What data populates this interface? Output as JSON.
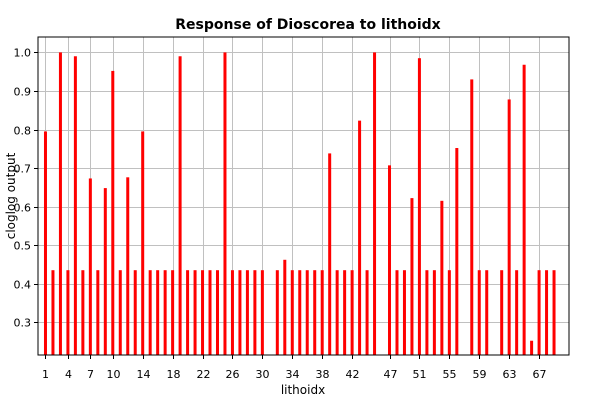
{
  "chart_data": {
    "type": "bar",
    "title": "Response of Dioscorea to lithoidx",
    "xlabel": "lithoidx",
    "ylabel": "cloglog output",
    "x": [
      1,
      2,
      3,
      4,
      5,
      6,
      7,
      8,
      9,
      10,
      11,
      12,
      13,
      14,
      15,
      16,
      17,
      18,
      19,
      20,
      21,
      22,
      23,
      24,
      25,
      26,
      27,
      28,
      29,
      30,
      31,
      32,
      33,
      34,
      35,
      36,
      37,
      38,
      39,
      40,
      41,
      42,
      43,
      44,
      45,
      46,
      47,
      48,
      49,
      50,
      51,
      52,
      53,
      54,
      55,
      56,
      57,
      58,
      59,
      60,
      61,
      62,
      63,
      64,
      65,
      66,
      67,
      68,
      69
    ],
    "values": [
      0.795,
      0.435,
      1.0,
      0.435,
      0.99,
      0.435,
      0.673,
      0.435,
      0.648,
      0.952,
      0.435,
      0.676,
      0.435,
      0.795,
      0.435,
      0.435,
      0.435,
      0.435,
      0.99,
      0.435,
      0.435,
      0.435,
      0.435,
      0.435,
      1.0,
      0.435,
      0.435,
      0.435,
      0.435,
      0.435,
      null,
      0.435,
      0.462,
      0.435,
      0.435,
      0.435,
      0.435,
      0.435,
      0.738,
      0.435,
      0.435,
      0.435,
      0.823,
      0.435,
      1.0,
      null,
      0.707,
      0.435,
      0.435,
      0.622,
      0.985,
      0.435,
      0.435,
      0.615,
      0.435,
      0.752,
      null,
      0.93,
      0.435,
      0.435,
      null,
      0.435,
      0.878,
      0.435,
      0.968,
      0.252,
      0.435,
      0.435,
      0.435
    ],
    "xticks": [
      1,
      4,
      7,
      10,
      14,
      18,
      22,
      26,
      30,
      34,
      38,
      42,
      47,
      51,
      55,
      59,
      63,
      67
    ],
    "yticks": [
      0.3,
      0.4,
      0.5,
      0.6,
      0.7,
      0.8,
      0.9,
      1.0
    ],
    "ylim": [
      0.215,
      1.04
    ],
    "xlim": [
      0,
      71
    ],
    "grid": true,
    "colors": {
      "bar": "#ff0000",
      "grid": "#c0c0c0",
      "axis": "#000000",
      "background": "#ffffff"
    }
  }
}
